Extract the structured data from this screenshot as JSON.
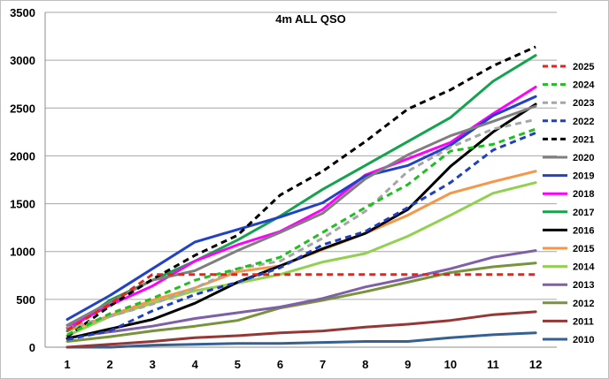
{
  "chart_data": {
    "type": "line",
    "title": "4m ALL QSO",
    "xlabel": "",
    "ylabel": "",
    "x": [
      "1",
      "2",
      "3",
      "4",
      "5",
      "6",
      "7",
      "8",
      "9",
      "10",
      "11",
      "12"
    ],
    "ylim": [
      0,
      3500
    ],
    "yticks": [
      "0",
      "500",
      "1000",
      "1500",
      "2000",
      "2500",
      "3000",
      "3500"
    ],
    "grid": true,
    "legend_position": "right",
    "series": [
      {
        "name": "2025",
        "color": "#e8231d",
        "dashed": true,
        "values": [
          180,
          450,
          760,
          760,
          760,
          760,
          760,
          760,
          760,
          760,
          760,
          760
        ]
      },
      {
        "name": "2024",
        "color": "#1fbf1f",
        "dashed": true,
        "values": [
          130,
          350,
          510,
          700,
          820,
          940,
          1200,
          1460,
          1700,
          2050,
          2120,
          2280
        ]
      },
      {
        "name": "2023",
        "color": "#a6a6a6",
        "dashed": true,
        "values": [
          200,
          320,
          450,
          620,
          820,
          900,
          1140,
          1420,
          1840,
          2090,
          2280,
          2380
        ]
      },
      {
        "name": "2022",
        "color": "#1f3fbf",
        "dashed": true,
        "values": [
          80,
          170,
          380,
          550,
          680,
          830,
          1070,
          1210,
          1460,
          1720,
          2060,
          2240
        ]
      },
      {
        "name": "2021",
        "color": "#000000",
        "dashed": true,
        "values": [
          110,
          430,
          710,
          960,
          1170,
          1590,
          1840,
          2150,
          2490,
          2690,
          2940,
          3140
        ]
      },
      {
        "name": "2020",
        "color": "#7f7f7f",
        "dashed": false,
        "values": [
          230,
          470,
          700,
          800,
          1010,
          1200,
          1400,
          1760,
          2010,
          2210,
          2360,
          2520
        ]
      },
      {
        "name": "2019",
        "color": "#2142c7",
        "dashed": false,
        "values": [
          290,
          540,
          820,
          1100,
          1230,
          1360,
          1510,
          1790,
          1900,
          2110,
          2420,
          2620
        ]
      },
      {
        "name": "2018",
        "color": "#ff00ff",
        "dashed": false,
        "values": [
          200,
          440,
          640,
          900,
          1070,
          1210,
          1440,
          1800,
          1970,
          2140,
          2440,
          2720
        ]
      },
      {
        "name": "2017",
        "color": "#14a34e",
        "dashed": false,
        "values": [
          170,
          490,
          700,
          900,
          1120,
          1370,
          1650,
          1900,
          2150,
          2400,
          2780,
          3050
        ]
      },
      {
        "name": "2016",
        "color": "#000000",
        "dashed": false,
        "values": [
          90,
          190,
          290,
          460,
          680,
          850,
          1030,
          1190,
          1440,
          1890,
          2250,
          2540
        ]
      },
      {
        "name": "2015",
        "color": "#f79646",
        "dashed": false,
        "values": [
          170,
          330,
          490,
          620,
          790,
          850,
          1020,
          1190,
          1380,
          1610,
          1730,
          1840
        ]
      },
      {
        "name": "2014",
        "color": "#92d050",
        "dashed": false,
        "values": [
          120,
          320,
          460,
          590,
          670,
          760,
          890,
          980,
          1160,
          1380,
          1610,
          1720
        ]
      },
      {
        "name": "2013",
        "color": "#7f5fa8",
        "dashed": false,
        "values": [
          100,
          160,
          220,
          300,
          360,
          420,
          510,
          630,
          720,
          820,
          940,
          1010
        ]
      },
      {
        "name": "2012",
        "color": "#77933c",
        "dashed": false,
        "values": [
          60,
          110,
          170,
          220,
          280,
          410,
          490,
          580,
          680,
          780,
          840,
          880
        ]
      },
      {
        "name": "2011",
        "color": "#953735",
        "dashed": false,
        "values": [
          0,
          30,
          60,
          100,
          120,
          150,
          170,
          210,
          240,
          280,
          340,
          370
        ]
      },
      {
        "name": "2010",
        "color": "#376092",
        "dashed": false,
        "values": [
          0,
          0,
          20,
          30,
          40,
          40,
          50,
          60,
          60,
          100,
          130,
          150
        ]
      }
    ]
  }
}
